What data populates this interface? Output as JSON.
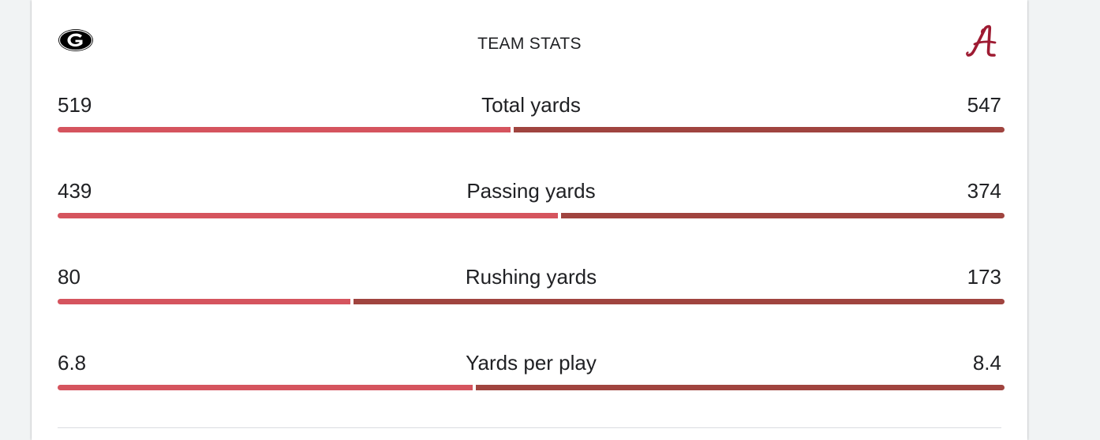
{
  "header": {
    "title": "TEAM STATS",
    "left_team_icon": "georgia-g-logo",
    "right_team_icon": "alabama-script-a-logo"
  },
  "colors": {
    "left_bar": "#d5545e",
    "right_bar": "#a0443f",
    "alabama_crimson": "#9e1b32"
  },
  "stats": [
    {
      "label": "Total yards",
      "left": "519",
      "right": "547",
      "left_share": 0.48
    },
    {
      "label": "Passing yards",
      "left": "439",
      "right": "374",
      "left_share": 0.53
    },
    {
      "label": "Rushing yards",
      "left": "80",
      "right": "173",
      "left_share": 0.31
    },
    {
      "label": "Yards per play",
      "left": "6.8",
      "right": "8.4",
      "left_share": 0.44
    }
  ]
}
